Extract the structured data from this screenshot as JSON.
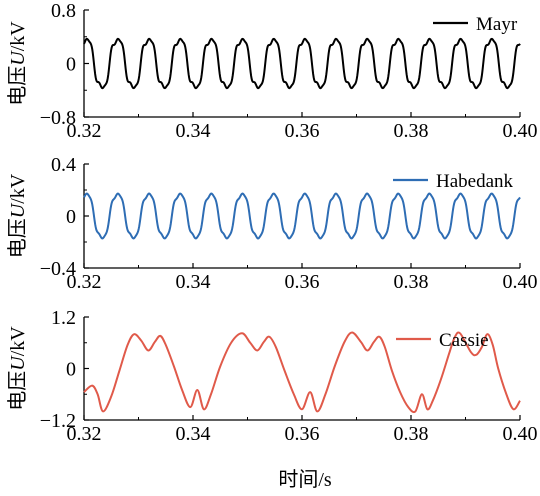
{
  "chart_data": [
    {
      "type": "line",
      "series": [
        {
          "name": "Mayr",
          "color": "#000000",
          "amplitude": 0.39,
          "cycles": 14,
          "harmonic": 0.06
        }
      ],
      "xlim": [
        0.32,
        0.4
      ],
      "ylim": [
        -0.8,
        0.8
      ],
      "xticks": [
        "0.32",
        "0.34",
        "0.36",
        "0.38",
        "0.40"
      ],
      "yticks": [
        "0.8",
        "0",
        "−0.8"
      ],
      "ylabel_prefix": "电压",
      "ylabel_var": "U",
      "ylabel_unit": "/kV",
      "legend_position": "top-right"
    },
    {
      "type": "line",
      "series": [
        {
          "name": "Habedank",
          "color": "#2e6db4",
          "amplitude": 0.18,
          "cycles": 14,
          "harmonic": 0.02
        }
      ],
      "xlim": [
        0.32,
        0.4
      ],
      "ylim": [
        -0.4,
        0.4
      ],
      "xticks": [
        "0.32",
        "0.34",
        "0.36",
        "0.38",
        "0.40"
      ],
      "yticks": [
        "0.4",
        "0",
        "−0.4"
      ],
      "ylabel_prefix": "电压",
      "ylabel_var": "U",
      "ylabel_unit": "/kV",
      "legend_position": "top-right"
    },
    {
      "type": "line",
      "series": [
        {
          "name": "Cassie",
          "color": "#e05a4a",
          "points": [
            [
              0.32,
              -0.55
            ],
            [
              0.3215,
              -0.4
            ],
            [
              0.3225,
              -0.6
            ],
            [
              0.3235,
              -1.0
            ],
            [
              0.325,
              -0.65
            ],
            [
              0.3265,
              -0.05
            ],
            [
              0.328,
              0.55
            ],
            [
              0.3292,
              0.8
            ],
            [
              0.3305,
              0.65
            ],
            [
              0.3318,
              0.42
            ],
            [
              0.333,
              0.62
            ],
            [
              0.334,
              0.76
            ],
            [
              0.335,
              0.55
            ],
            [
              0.3365,
              0.05
            ],
            [
              0.338,
              -0.5
            ],
            [
              0.3395,
              -0.9
            ],
            [
              0.3408,
              -0.5
            ],
            [
              0.342,
              -0.95
            ],
            [
              0.3433,
              -0.6
            ],
            [
              0.345,
              0.05
            ],
            [
              0.347,
              0.6
            ],
            [
              0.349,
              0.82
            ],
            [
              0.3505,
              0.6
            ],
            [
              0.3518,
              0.42
            ],
            [
              0.353,
              0.62
            ],
            [
              0.354,
              0.74
            ],
            [
              0.3552,
              0.5
            ],
            [
              0.3568,
              -0.05
            ],
            [
              0.3585,
              -0.6
            ],
            [
              0.36,
              -0.95
            ],
            [
              0.3615,
              -0.55
            ],
            [
              0.3628,
              -1.0
            ],
            [
              0.3643,
              -0.6
            ],
            [
              0.366,
              0.05
            ],
            [
              0.3678,
              0.62
            ],
            [
              0.3692,
              0.84
            ],
            [
              0.3708,
              0.62
            ],
            [
              0.372,
              0.42
            ],
            [
              0.3732,
              0.62
            ],
            [
              0.3742,
              0.74
            ],
            [
              0.3752,
              0.5
            ],
            [
              0.3765,
              -0.05
            ],
            [
              0.378,
              -0.55
            ],
            [
              0.3795,
              -0.9
            ],
            [
              0.3808,
              -1.0
            ],
            [
              0.382,
              -0.6
            ],
            [
              0.383,
              -0.95
            ],
            [
              0.384,
              -0.75
            ],
            [
              0.3855,
              -0.25
            ],
            [
              0.387,
              0.35
            ],
            [
              0.388,
              0.72
            ],
            [
              0.389,
              0.82
            ],
            [
              0.391,
              0.38
            ],
            [
              0.392,
              0.32
            ],
            [
              0.393,
              0.5
            ],
            [
              0.394,
              0.8
            ],
            [
              0.395,
              0.55
            ],
            [
              0.396,
              0.0
            ],
            [
              0.3975,
              -0.6
            ],
            [
              0.3988,
              -0.95
            ],
            [
              0.4,
              -0.75
            ]
          ]
        }
      ],
      "xlim": [
        0.32,
        0.4
      ],
      "ylim": [
        -1.2,
        1.2
      ],
      "xticks": [
        "0.32",
        "0.34",
        "0.36",
        "0.38",
        "0.40"
      ],
      "yticks": [
        "1.2",
        "0",
        "−1.2"
      ],
      "ylabel_prefix": "电压",
      "ylabel_var": "U",
      "ylabel_unit": "/kV",
      "legend_position": "top-right"
    }
  ],
  "xlabel": "时间/s"
}
